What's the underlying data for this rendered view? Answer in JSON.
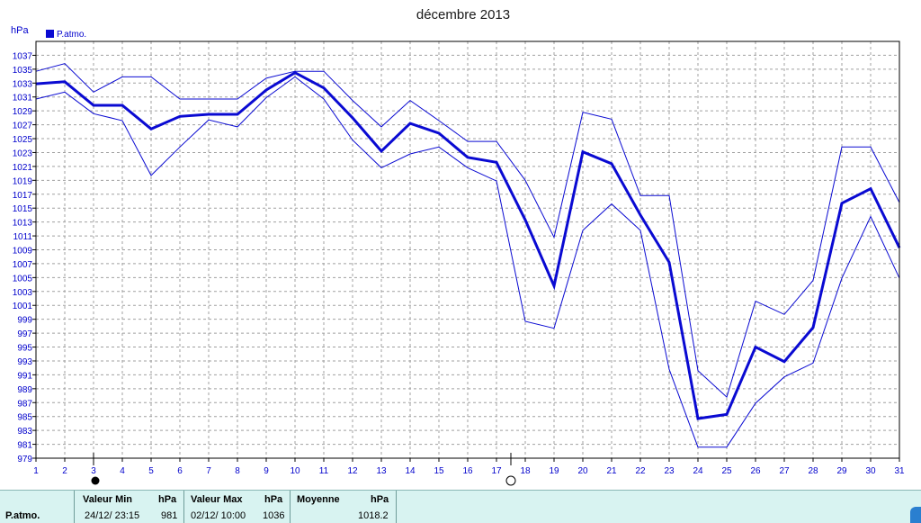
{
  "chart_data": {
    "type": "line",
    "title": "décembre 2013",
    "ylabel": "hPa",
    "legend": [
      "P.atmo."
    ],
    "legend_position": "top-left",
    "grid": true,
    "ylim": [
      979,
      1039
    ],
    "yticks": [
      979,
      981,
      983,
      985,
      987,
      989,
      991,
      993,
      995,
      997,
      999,
      1001,
      1003,
      1005,
      1007,
      1009,
      1011,
      1013,
      1015,
      1017,
      1019,
      1021,
      1023,
      1025,
      1027,
      1029,
      1031,
      1033,
      1035,
      1037
    ],
    "x": [
      1,
      2,
      3,
      4,
      5,
      6,
      7,
      8,
      9,
      10,
      11,
      12,
      13,
      14,
      15,
      16,
      17,
      18,
      19,
      20,
      21,
      22,
      23,
      24,
      25,
      26,
      27,
      28,
      29,
      30,
      31
    ],
    "series": [
      {
        "values": [
          1034.7,
          1035.8,
          1031.7,
          1033.9,
          1033.9,
          1030.7,
          1030.7,
          1030.7,
          1033.7,
          1034.7,
          1034.7,
          1030.5,
          1026.7,
          1030.5,
          1027.6,
          1024.6,
          1024.6,
          1019.0,
          1010.8,
          1028.8,
          1027.8,
          1016.8,
          1016.8,
          991.6,
          987.8,
          1001.6,
          999.7,
          1004.6,
          1023.8,
          1023.8,
          1015.8
        ]
      },
      {
        "values": [
          1032.9,
          1033.2,
          1029.8,
          1029.8,
          1026.4,
          1028.2,
          1028.5,
          1028.5,
          1032.0,
          1034.5,
          1032.3,
          1028.0,
          1023.2,
          1027.2,
          1025.8,
          1022.3,
          1021.6,
          1013.3,
          1003.8,
          1023.1,
          1021.4,
          1014.0,
          1007.2,
          984.7,
          985.3,
          995.0,
          992.9,
          997.8,
          1015.7,
          1017.8,
          1009.3
        ]
      },
      {
        "values": [
          1030.7,
          1031.7,
          1028.6,
          1027.6,
          1019.7,
          1023.8,
          1027.7,
          1026.7,
          1030.9,
          1033.9,
          1030.7,
          1024.8,
          1020.8,
          1022.8,
          1023.8,
          1020.8,
          1018.9,
          998.7,
          997.7,
          1011.8,
          1015.6,
          1011.8,
          991.8,
          980.6,
          980.6,
          986.9,
          990.7,
          992.7,
          1004.9,
          1013.8,
          1004.9
        ]
      }
    ],
    "line_width": [
      1,
      3,
      1
    ],
    "line_color": "#0a0ad2",
    "moon_markers": [
      {
        "day": 3,
        "phase": "full"
      },
      {
        "day": 17.5,
        "phase": "new"
      }
    ]
  },
  "stats": {
    "row_label": "P.atmo.",
    "min": {
      "header": "Valeur Min",
      "unit": "hPa",
      "datetime": "24/12/  23:15",
      "value": "981"
    },
    "max": {
      "header": "Valeur Max",
      "unit": "hPa",
      "datetime": "02/12/  10:00",
      "value": "1036"
    },
    "avg": {
      "header": "Moyenne",
      "unit": "hPa",
      "value": "1018.2"
    }
  },
  "colors": {
    "series": "#0a0ad2",
    "labels": "#0000cc",
    "stats_bg": "#d8f3f1"
  }
}
